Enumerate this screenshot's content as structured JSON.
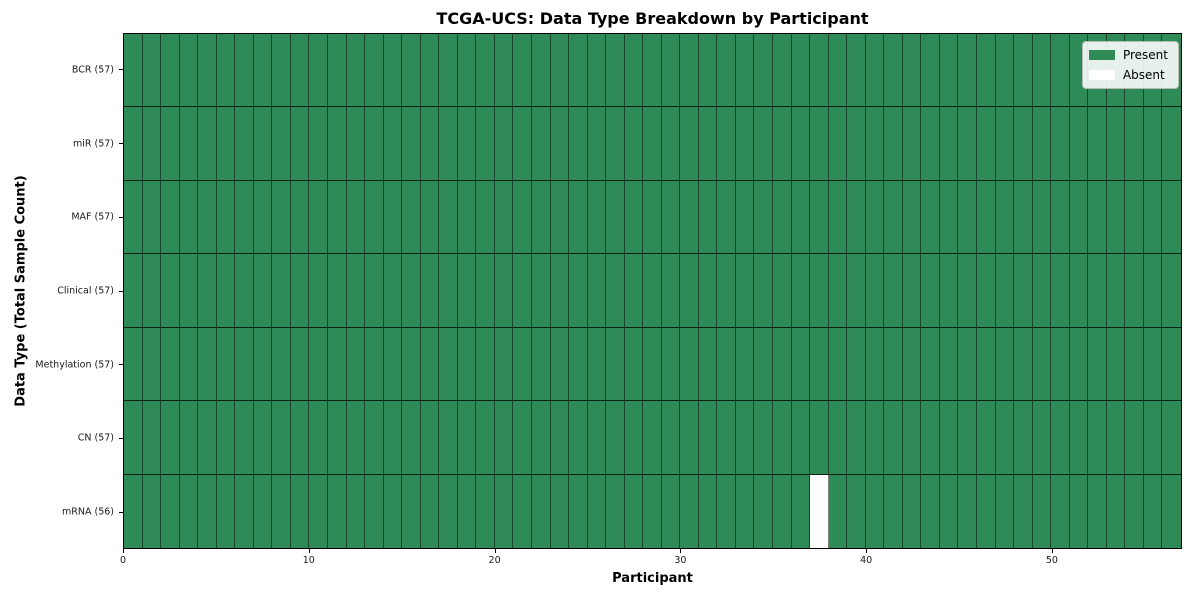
{
  "chart_data": {
    "type": "heatmap",
    "title": "TCGA-UCS: Data Type Breakdown by Participant",
    "xlabel": "Participant",
    "ylabel": "Data Type (Total Sample Count)",
    "n_participants": 57,
    "xlim": [
      0,
      57
    ],
    "x_ticks": [
      0,
      10,
      20,
      30,
      40,
      50
    ],
    "colors": {
      "present": "#2e8b57",
      "absent": "#ffffff"
    },
    "legend": {
      "position": "upper right",
      "entries": [
        {
          "label": "Present",
          "swatch": "present"
        },
        {
          "label": "Absent",
          "swatch": "absent"
        }
      ]
    },
    "rows": [
      {
        "label": "BCR (57)",
        "data_type": "BCR",
        "sample_count": 57,
        "absent_participants": []
      },
      {
        "label": "miR (57)",
        "data_type": "miR",
        "sample_count": 57,
        "absent_participants": []
      },
      {
        "label": "MAF (57)",
        "data_type": "MAF",
        "sample_count": 57,
        "absent_participants": []
      },
      {
        "label": "Clinical (57)",
        "data_type": "Clinical",
        "sample_count": 57,
        "absent_participants": []
      },
      {
        "label": "Methylation (57)",
        "data_type": "Methylation",
        "sample_count": 57,
        "absent_participants": []
      },
      {
        "label": "CN (57)",
        "data_type": "CN",
        "sample_count": 57,
        "absent_participants": []
      },
      {
        "label": "mRNA (56)",
        "data_type": "mRNA",
        "sample_count": 56,
        "absent_participants": [
          37
        ]
      }
    ]
  }
}
